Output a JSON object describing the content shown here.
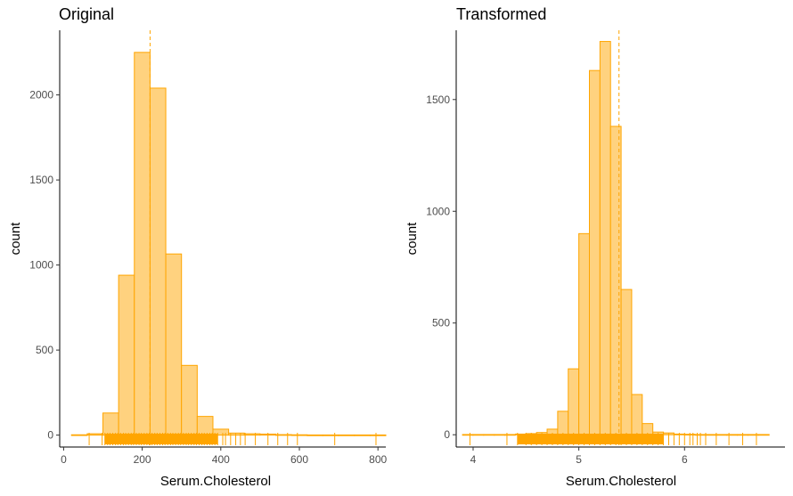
{
  "chart_data": [
    {
      "type": "bar",
      "title": "Original",
      "xlabel": "Serum.Cholesterol",
      "ylabel": "count",
      "xlim": [
        -10,
        820
      ],
      "ylim": [
        -70,
        2380
      ],
      "x_ticks": [
        0,
        200,
        400,
        600,
        800
      ],
      "y_ticks": [
        0,
        500,
        1000,
        1500,
        2000
      ],
      "bin_width": 40,
      "bin_starts": [
        20,
        60,
        100,
        140,
        180,
        220,
        260,
        300,
        340,
        380,
        420,
        460,
        500,
        540,
        580,
        620,
        660,
        700,
        740,
        780
      ],
      "values": [
        2,
        8,
        130,
        940,
        2250,
        2040,
        1065,
        410,
        110,
        35,
        12,
        8,
        6,
        3,
        2,
        1,
        1,
        1,
        1,
        1
      ],
      "mean_line": 220,
      "rug_values": [
        65,
        98,
        105,
        112,
        118,
        125,
        132,
        138,
        145,
        152,
        158,
        165,
        172,
        178,
        185,
        192,
        198,
        205,
        212,
        218,
        225,
        232,
        238,
        245,
        252,
        258,
        265,
        272,
        278,
        285,
        292,
        298,
        305,
        312,
        318,
        325,
        332,
        338,
        345,
        352,
        358,
        365,
        372,
        378,
        385,
        392,
        405,
        412,
        425,
        438,
        450,
        462,
        488,
        520,
        545,
        570,
        595,
        690,
        795
      ],
      "grid": false,
      "legend": "none"
    },
    {
      "type": "bar",
      "title": "Transformed",
      "xlabel": "Serum.Cholesterol",
      "ylabel": "count",
      "xlim": [
        3.84,
        6.95
      ],
      "ylim": [
        -55,
        1810
      ],
      "x_ticks": [
        4,
        5,
        6
      ],
      "y_ticks": [
        0,
        500,
        1000,
        1500
      ],
      "bin_width": 0.1,
      "bin_starts": [
        3.9,
        4.0,
        4.1,
        4.2,
        4.3,
        4.4,
        4.5,
        4.6,
        4.7,
        4.8,
        4.9,
        5.0,
        5.1,
        5.2,
        5.3,
        5.4,
        5.5,
        5.6,
        5.7,
        5.8,
        5.9,
        6.0,
        6.1,
        6.2,
        6.3,
        6.4,
        6.5,
        6.6,
        6.7
      ],
      "values": [
        1,
        1,
        1,
        1,
        1,
        3,
        5,
        10,
        25,
        105,
        295,
        900,
        1630,
        1760,
        1380,
        650,
        180,
        50,
        12,
        8,
        3,
        2,
        1,
        1,
        1,
        1,
        1,
        1,
        1
      ],
      "mean_line": 5.38,
      "rug_values": [
        3.97,
        4.32,
        4.42,
        4.5,
        4.55,
        4.6,
        4.65,
        4.7,
        4.75,
        4.8,
        4.85,
        4.9,
        4.95,
        5.0,
        5.05,
        5.1,
        5.15,
        5.2,
        5.25,
        5.3,
        5.35,
        5.4,
        5.45,
        5.5,
        5.55,
        5.6,
        5.65,
        5.7,
        5.75,
        5.8,
        5.85,
        5.9,
        5.95,
        6.0,
        6.05,
        6.08,
        6.12,
        6.15,
        6.2,
        6.3,
        6.42,
        6.55,
        6.68
      ],
      "grid": false,
      "legend": "none"
    }
  ]
}
